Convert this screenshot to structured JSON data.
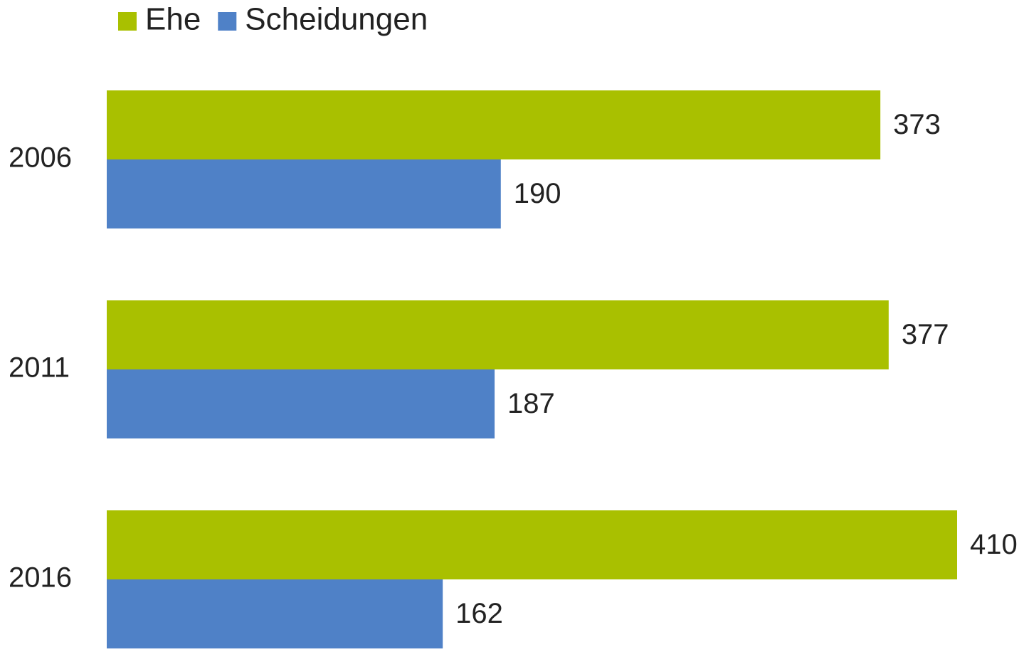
{
  "chart_data": {
    "type": "hbar",
    "categories": [
      "2006",
      "2011",
      "2016"
    ],
    "series": [
      {
        "name": "Ehe",
        "color": "#a9c000",
        "values": [
          373,
          377,
          410
        ]
      },
      {
        "name": "Scheidungen",
        "color": "#4f81c7",
        "values": [
          190,
          187,
          162
        ]
      }
    ],
    "legend": "top"
  }
}
